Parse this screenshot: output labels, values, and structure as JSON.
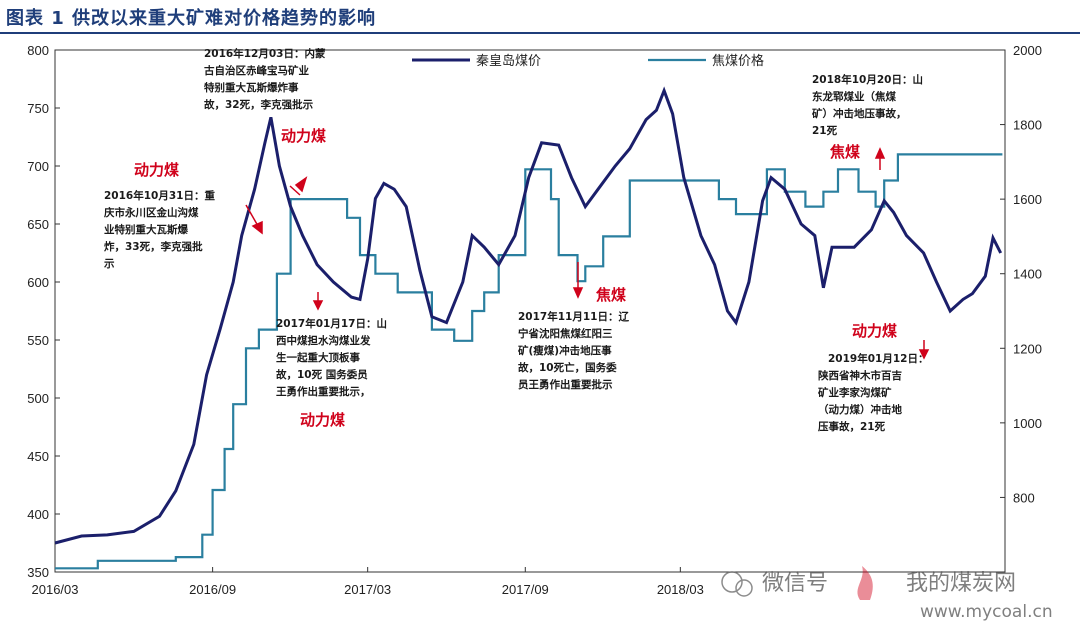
{
  "figure": {
    "title": "图表 1 供改以来重大矿难对价格趋势的影响"
  },
  "chart_data": {
    "type": "line",
    "y_left": {
      "min": 350,
      "max": 800,
      "ticks": [
        "350",
        "400",
        "450",
        "500",
        "550",
        "600",
        "650",
        "700",
        "750",
        "800"
      ]
    },
    "y_right": {
      "min": 600,
      "max": 2000,
      "ticks": [
        "800",
        "1000",
        "1200",
        "1400",
        "1600",
        "1800",
        "2000"
      ]
    },
    "x_range": [
      "2016-03-01",
      "2019-03-15"
    ],
    "x_ticks": [
      {
        "date": "2016-03-01",
        "label": "2016/03"
      },
      {
        "date": "2016-09-01",
        "label": "2016/09"
      },
      {
        "date": "2017-03-01",
        "label": "2017/03"
      },
      {
        "date": "2017-09-01",
        "label": "2017/09"
      },
      {
        "date": "2018-03-01",
        "label": "2018/03"
      }
    ],
    "series": [
      {
        "name": "秦皇岛煤价",
        "axis": "left",
        "color": "#1b1f6b",
        "points": [
          [
            "2016-03-01",
            375
          ],
          [
            "2016-04-01",
            381
          ],
          [
            "2016-05-01",
            382
          ],
          [
            "2016-06-01",
            385
          ],
          [
            "2016-07-01",
            398
          ],
          [
            "2016-07-20",
            420
          ],
          [
            "2016-08-10",
            460
          ],
          [
            "2016-08-25",
            520
          ],
          [
            "2016-09-10",
            560
          ],
          [
            "2016-09-25",
            600
          ],
          [
            "2016-10-05",
            640
          ],
          [
            "2016-10-20",
            680
          ],
          [
            "2016-11-01",
            720
          ],
          [
            "2016-11-08",
            742
          ],
          [
            "2016-11-18",
            700
          ],
          [
            "2016-12-01",
            665
          ],
          [
            "2016-12-15",
            640
          ],
          [
            "2017-01-01",
            615
          ],
          [
            "2017-01-20",
            600
          ],
          [
            "2017-02-10",
            587
          ],
          [
            "2017-02-20",
            585
          ],
          [
            "2017-03-01",
            620
          ],
          [
            "2017-03-10",
            672
          ],
          [
            "2017-03-20",
            685
          ],
          [
            "2017-04-01",
            680
          ],
          [
            "2017-04-15",
            665
          ],
          [
            "2017-05-01",
            610
          ],
          [
            "2017-05-15",
            570
          ],
          [
            "2017-06-01",
            565
          ],
          [
            "2017-06-20",
            600
          ],
          [
            "2017-07-01",
            640
          ],
          [
            "2017-07-15",
            630
          ],
          [
            "2017-08-01",
            615
          ],
          [
            "2017-08-20",
            640
          ],
          [
            "2017-09-05",
            690
          ],
          [
            "2017-09-20",
            720
          ],
          [
            "2017-10-10",
            718
          ],
          [
            "2017-10-25",
            690
          ],
          [
            "2017-11-10",
            665
          ],
          [
            "2017-11-25",
            680
          ],
          [
            "2017-12-15",
            700
          ],
          [
            "2018-01-01",
            715
          ],
          [
            "2018-01-20",
            740
          ],
          [
            "2018-02-01",
            748
          ],
          [
            "2018-02-10",
            765
          ],
          [
            "2018-02-20",
            745
          ],
          [
            "2018-03-05",
            690
          ],
          [
            "2018-03-25",
            640
          ],
          [
            "2018-04-10",
            615
          ],
          [
            "2018-04-25",
            575
          ],
          [
            "2018-05-05",
            565
          ],
          [
            "2018-05-20",
            600
          ],
          [
            "2018-06-05",
            670
          ],
          [
            "2018-06-15",
            690
          ],
          [
            "2018-07-01",
            680
          ],
          [
            "2018-07-20",
            650
          ],
          [
            "2018-08-05",
            640
          ],
          [
            "2018-08-15",
            595
          ],
          [
            "2018-08-25",
            630
          ],
          [
            "2018-09-20",
            630
          ],
          [
            "2018-10-10",
            645
          ],
          [
            "2018-10-25",
            670
          ],
          [
            "2018-11-05",
            660
          ],
          [
            "2018-11-20",
            640
          ],
          [
            "2018-12-10",
            625
          ],
          [
            "2018-12-25",
            600
          ],
          [
            "2019-01-10",
            575
          ],
          [
            "2019-01-25",
            585
          ],
          [
            "2019-02-05",
            590
          ],
          [
            "2019-02-20",
            605
          ],
          [
            "2019-03-01",
            638
          ],
          [
            "2019-03-10",
            625
          ]
        ]
      },
      {
        "name": "焦煤价格",
        "axis": "right",
        "color": "#2a7f9f",
        "steps": [
          [
            "2016-03-01",
            610
          ],
          [
            "2016-04-20",
            630
          ],
          [
            "2016-07-20",
            640
          ],
          [
            "2016-08-20",
            700
          ],
          [
            "2016-09-01",
            820
          ],
          [
            "2016-09-15",
            930
          ],
          [
            "2016-09-25",
            1050
          ],
          [
            "2016-10-10",
            1200
          ],
          [
            "2016-10-25",
            1250
          ],
          [
            "2016-11-15",
            1400
          ],
          [
            "2016-12-01",
            1600
          ],
          [
            "2017-02-05",
            1550
          ],
          [
            "2017-02-20",
            1450
          ],
          [
            "2017-03-10",
            1400
          ],
          [
            "2017-04-05",
            1350
          ],
          [
            "2017-05-15",
            1250
          ],
          [
            "2017-06-10",
            1220
          ],
          [
            "2017-07-01",
            1300
          ],
          [
            "2017-07-15",
            1350
          ],
          [
            "2017-08-01",
            1450
          ],
          [
            "2017-09-01",
            1680
          ],
          [
            "2017-10-01",
            1600
          ],
          [
            "2017-10-10",
            1450
          ],
          [
            "2017-11-01",
            1380
          ],
          [
            "2017-11-10",
            1420
          ],
          [
            "2017-12-01",
            1500
          ],
          [
            "2018-01-01",
            1650
          ],
          [
            "2018-04-15",
            1600
          ],
          [
            "2018-05-05",
            1560
          ],
          [
            "2018-06-10",
            1680
          ],
          [
            "2018-07-01",
            1620
          ],
          [
            "2018-07-25",
            1580
          ],
          [
            "2018-08-15",
            1620
          ],
          [
            "2018-09-01",
            1680
          ],
          [
            "2018-09-25",
            1620
          ],
          [
            "2018-10-15",
            1580
          ],
          [
            "2018-10-25",
            1650
          ],
          [
            "2018-11-10",
            1720
          ],
          [
            "2018-12-05",
            1720
          ],
          [
            "2019-03-12",
            1720
          ]
        ]
      }
    ],
    "annotations": [
      {
        "lines": [
          "2016年12月03日：内蒙",
          "古自治区赤峰宝马矿业",
          "特别重大瓦斯爆炸事",
          "故，32死，李克强批示"
        ]
      },
      {
        "lines": [
          "2016年10月31日：重",
          "庆市永川区金山沟煤",
          "业特别重大瓦斯爆",
          "炸，33死，李克强批",
          "示"
        ]
      },
      {
        "lines": [
          "2017年01月17日：山",
          "西中煤担水沟煤业发",
          "生一起重大顶板事",
          "故，10死 国务委员",
          "王勇作出重要批示，"
        ]
      },
      {
        "lines": [
          "2017年11月11日：辽",
          "宁省沈阳焦煤红阳三",
          "矿(瘦煤)冲击地压事",
          "故，10死亡，国务委",
          "员王勇作出重要批示"
        ]
      },
      {
        "lines": [
          "2018年10月20日：山",
          "东龙郓煤业（焦煤",
          "矿）冲击地压事故，",
          "21死"
        ]
      },
      {
        "lines": [
          "2019年01月12日：",
          "陕西省神木市百吉",
          "矿业李家沟煤矿",
          "（动力煤）冲击地",
          "压事故，21死"
        ]
      }
    ],
    "labels": [
      "动力煤",
      "动力煤",
      "动力煤",
      "焦煤",
      "焦煤",
      "动力煤"
    ]
  },
  "watermark": {
    "wechat": "微信号",
    "brand": "我的煤炭网",
    "url": "www.mycoal.cn"
  }
}
